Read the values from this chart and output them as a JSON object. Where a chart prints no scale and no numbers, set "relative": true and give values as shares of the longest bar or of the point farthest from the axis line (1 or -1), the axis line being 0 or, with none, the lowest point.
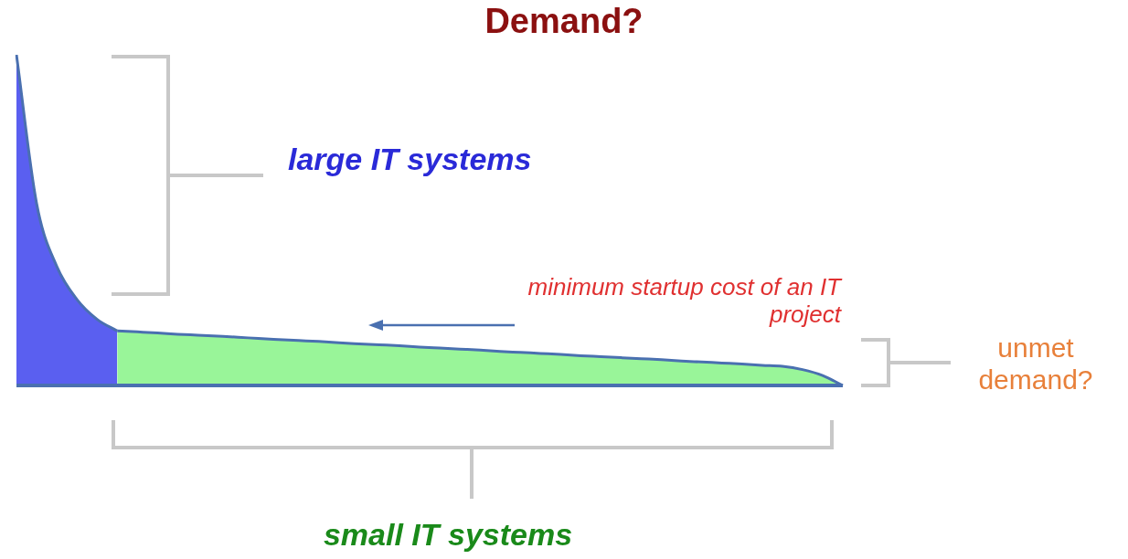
{
  "chart_data": {
    "type": "area",
    "title": "Demand?",
    "relative": true,
    "categories": [
      null,
      null,
      null,
      null,
      null,
      null,
      null,
      null,
      null,
      null,
      null,
      null,
      null,
      null,
      null,
      null,
      null,
      null,
      null,
      null,
      null,
      null,
      null,
      null,
      null,
      null,
      null,
      null,
      null,
      null,
      null,
      null,
      null,
      null,
      null,
      null,
      null,
      null,
      null,
      null,
      null,
      null
    ],
    "series": [
      {
        "color": "#5a5ff0",
        "values": [
          1,
          0.55,
          0.36,
          0.26,
          0.2,
          0.165,
          null,
          null,
          null,
          null,
          null,
          null,
          null,
          null,
          null,
          null,
          null,
          null,
          null,
          null,
          null,
          null,
          null,
          null,
          null,
          null,
          null,
          null,
          null,
          null,
          null,
          null,
          null,
          null,
          null,
          null,
          null,
          null,
          null,
          null,
          null,
          null
        ]
      },
      {
        "color": "#99f599",
        "values": [
          null,
          null,
          null,
          null,
          null,
          0.165,
          0.162,
          0.159,
          0.155,
          0.152,
          0.149,
          0.146,
          0.142,
          0.139,
          0.136,
          0.133,
          0.129,
          0.126,
          0.123,
          0.12,
          0.116,
          0.113,
          0.11,
          0.107,
          0.103,
          0.1,
          0.097,
          0.094,
          0.09,
          0.087,
          0.084,
          0.081,
          0.078,
          0.074,
          0.071,
          0.068,
          0.065,
          0.061,
          0.058,
          0.048,
          0.03,
          0
        ]
      }
    ],
    "annotations": [
      "large IT systems",
      "minimum startup cost of an IT project",
      "unmet demand?",
      "small IT systems"
    ],
    "legend": false
  }
}
